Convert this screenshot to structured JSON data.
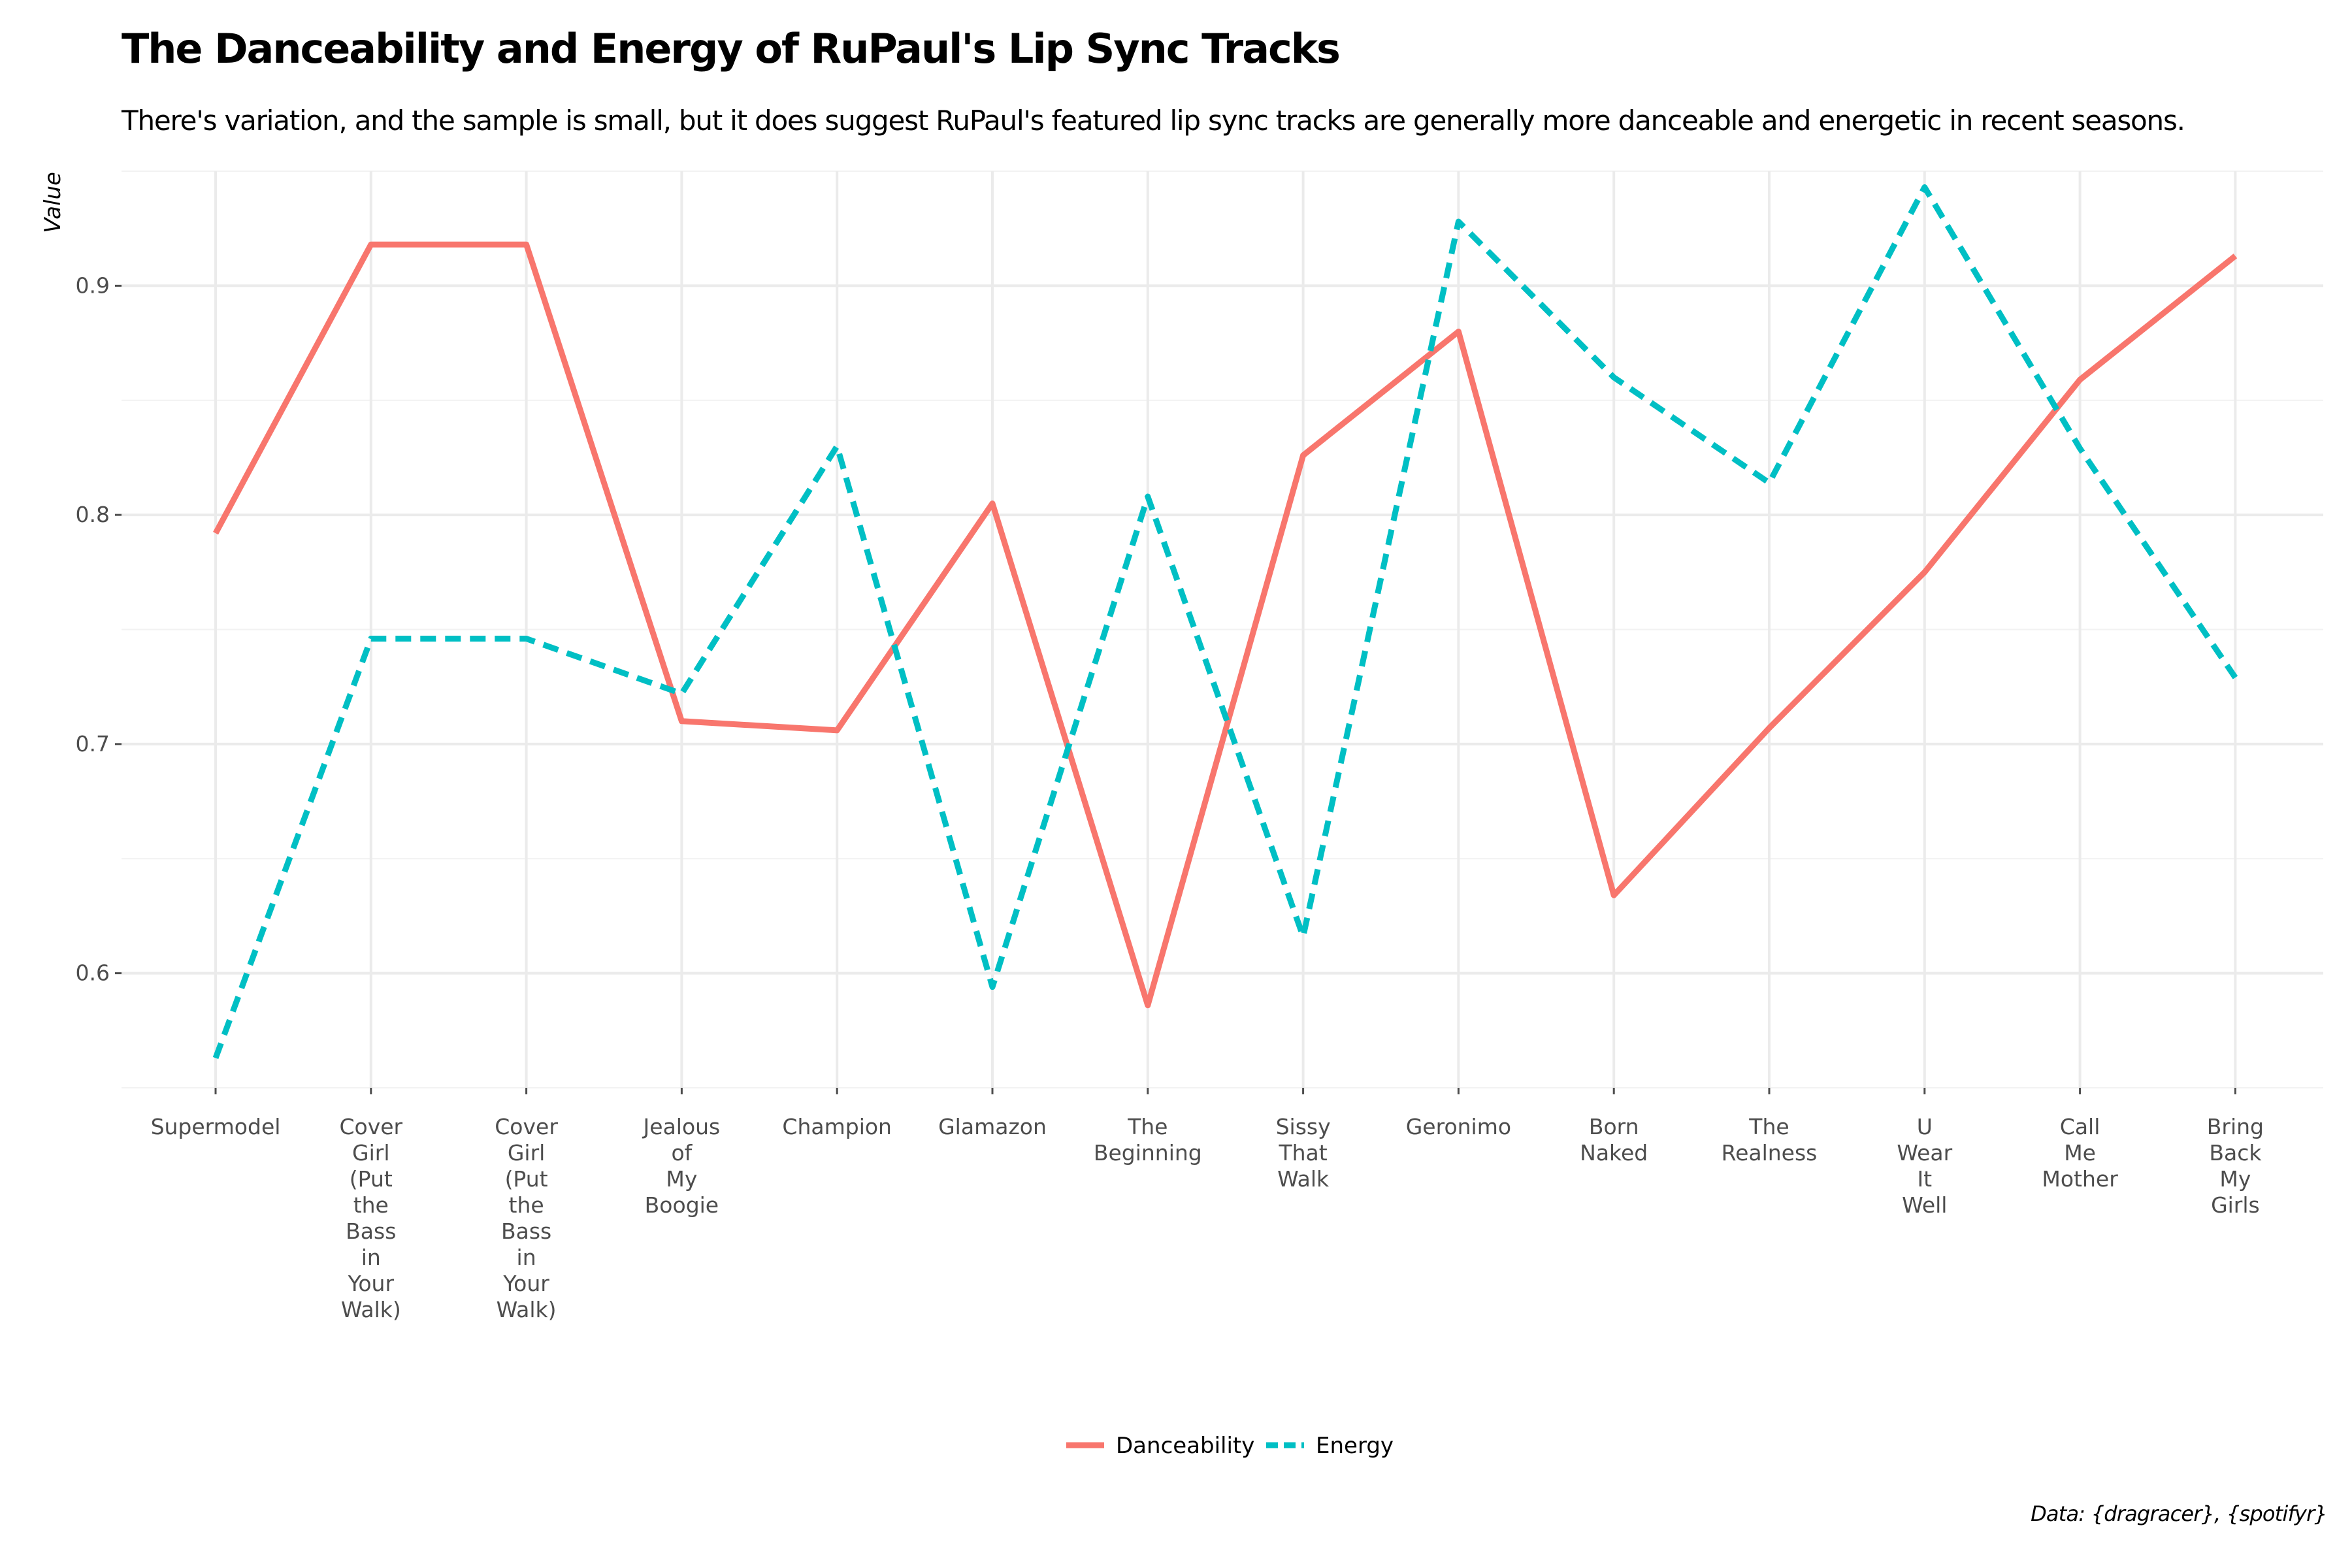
{
  "title": "The Danceability and Energy of RuPaul's Lip Sync Tracks",
  "subtitle": "There's variation, and the sample is small, but it does suggest RuPaul's featured lip sync tracks are generally more danceable and energetic in recent seasons.",
  "caption": "Data: {dragracer}, {spotifyr}",
  "chart_data": {
    "type": "line",
    "title": "The Danceability and Energy of RuPaul's Lip Sync Tracks",
    "xlabel": "",
    "ylabel": "Value",
    "ylim": [
      0.55,
      0.95
    ],
    "yticks": [
      "0.6",
      "0.7",
      "0.8",
      "0.9"
    ],
    "grid": true,
    "legend_position": "bottom",
    "categories": [
      "Supermodel",
      "Cover Girl (Put the Bass in Your Walk)",
      "Cover Girl (Put the Bass in Your Walk)",
      "Jealous of My Boogie",
      "Champion",
      "Glamazon",
      "The Beginning",
      "Sissy That Walk",
      "Geronimo",
      "Born Naked",
      "The Realness",
      "U Wear It Well",
      "Call Me Mother",
      "Bring Back My Girls"
    ],
    "category_lines": [
      [
        "Supermodel"
      ],
      [
        "Cover",
        "Girl",
        "(Put",
        "the",
        "Bass",
        "in",
        "Your",
        "Walk)"
      ],
      [
        "Cover",
        "Girl",
        "(Put",
        "the",
        "Bass",
        "in",
        "Your",
        "Walk)"
      ],
      [
        "Jealous",
        "of",
        "My",
        "Boogie"
      ],
      [
        "Champion"
      ],
      [
        "Glamazon"
      ],
      [
        "The",
        "Beginning"
      ],
      [
        "Sissy",
        "That",
        "Walk"
      ],
      [
        "Geronimo"
      ],
      [
        "Born",
        "Naked"
      ],
      [
        "The",
        "Realness"
      ],
      [
        "U",
        "Wear",
        "It",
        "Well"
      ],
      [
        "Call",
        "Me",
        "Mother"
      ],
      [
        "Bring",
        "Back",
        "My",
        "Girls"
      ]
    ],
    "series": [
      {
        "name": "Danceability",
        "color": "#F8766D",
        "dash": "solid",
        "values": [
          0.792,
          0.918,
          0.918,
          0.71,
          0.706,
          0.805,
          0.586,
          0.826,
          0.88,
          0.634,
          0.707,
          0.775,
          0.859,
          0.913
        ]
      },
      {
        "name": "Energy",
        "color": "#00BFC4",
        "dash": "dashed",
        "values": [
          0.563,
          0.746,
          0.746,
          0.722,
          0.83,
          0.594,
          0.808,
          0.616,
          0.928,
          0.86,
          0.814,
          0.943,
          0.829,
          0.729
        ]
      }
    ]
  }
}
